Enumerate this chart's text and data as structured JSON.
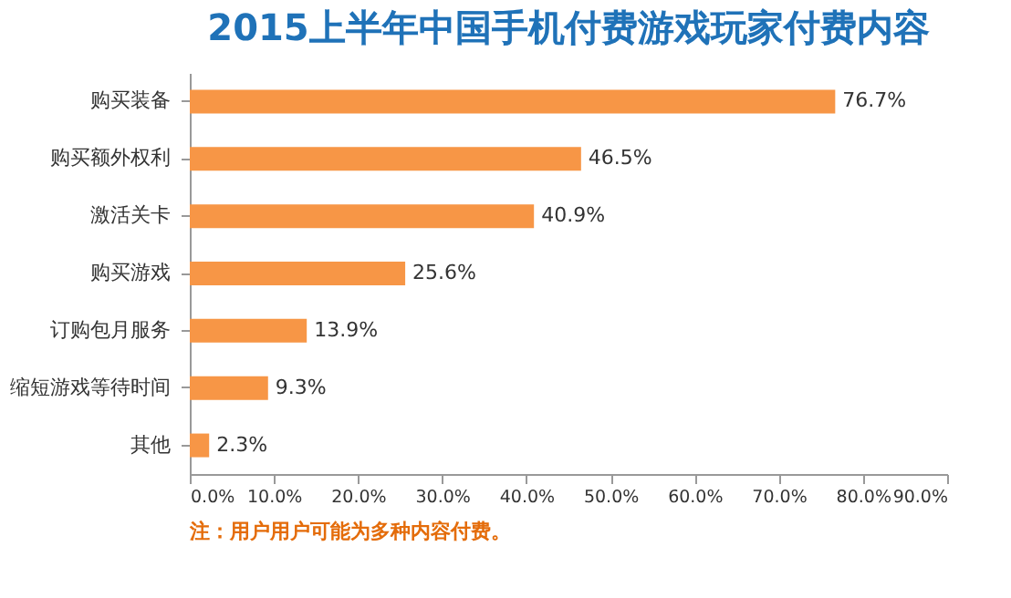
{
  "chart_data": {
    "type": "bar",
    "orientation": "horizontal",
    "title": "2015上半年中国手机付费游戏玩家付费内容",
    "categories": [
      "购买装备",
      "购买额外权利",
      "激活关卡",
      "购买游戏",
      "订购包月服务",
      "缩短游戏等待时间",
      "其他"
    ],
    "values": [
      76.7,
      46.5,
      40.9,
      25.6,
      13.9,
      9.3,
      2.3
    ],
    "value_labels": [
      "76.7%",
      "46.5%",
      "40.9%",
      "25.6%",
      "13.9%",
      "9.3%",
      "2.3%"
    ],
    "color": "#f79646",
    "xlim": [
      0,
      90
    ],
    "xticks": [
      {
        "value": 0,
        "label": "0.0%"
      },
      {
        "value": 10,
        "label": "10.0%"
      },
      {
        "value": 20,
        "label": "20.0%"
      },
      {
        "value": 30,
        "label": "30.0%"
      },
      {
        "value": 40,
        "label": "40.0%"
      },
      {
        "value": 50,
        "label": "50.0%"
      },
      {
        "value": 60,
        "label": "60.0%"
      },
      {
        "value": 70,
        "label": "70.0%"
      },
      {
        "value": 80,
        "label": "80.0%"
      },
      {
        "value": 90,
        "label": "90.0%"
      }
    ],
    "grid": false,
    "annotations": [
      "注：用户用户可能为多种内容付费。"
    ]
  }
}
